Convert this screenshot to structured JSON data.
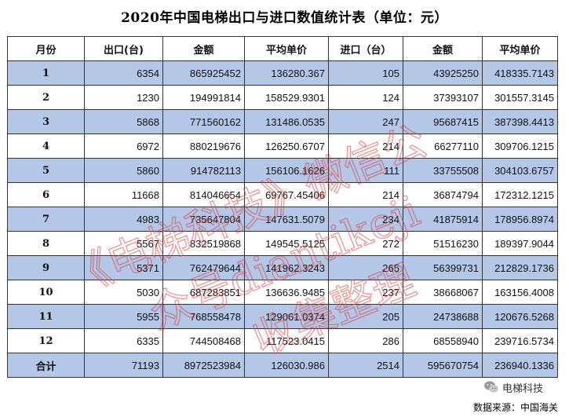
{
  "title": "2020年中国电梯出口与进口数值统计表（单位：元）",
  "headers": [
    "月份",
    "出口(台)",
    "金额",
    "平均单价",
    "进口（台）",
    "金额",
    "平均单价"
  ],
  "rows": [
    [
      "1",
      "6354",
      "865925452",
      "136280.367",
      "105",
      "43925250",
      "418335.7143"
    ],
    [
      "2",
      "1230",
      "194991814",
      "158529.9301",
      "124",
      "37393107",
      "301557.3145"
    ],
    [
      "3",
      "5868",
      "771560162",
      "131486.0535",
      "247",
      "95687415",
      "387398.4413"
    ],
    [
      "4",
      "6972",
      "880219676",
      "126250.6707",
      "214",
      "66277110",
      "309706.1215"
    ],
    [
      "5",
      "5860",
      "914782113",
      "156106.1626",
      "111",
      "33755508",
      "304103.6757"
    ],
    [
      "6",
      "11668",
      "814046654",
      "69767.45406",
      "214",
      "36874794",
      "172312.1215"
    ],
    [
      "7",
      "4983",
      "735647804",
      "147631.5079",
      "234",
      "41875914",
      "178956.8974"
    ],
    [
      "8",
      "5567",
      "832519868",
      "149545.5125",
      "272",
      "51516230",
      "189397.9044"
    ],
    [
      "9",
      "5371",
      "762479644",
      "141962.3243",
      "265",
      "56399731",
      "212829.1736"
    ],
    [
      "10",
      "5030",
      "687283851",
      "136636.9485",
      "237",
      "38668067",
      "163156.4008"
    ],
    [
      "11",
      "5955",
      "768558478",
      "129061.0374",
      "205",
      "24738688",
      "120676.5268"
    ],
    [
      "12",
      "6335",
      "744508468",
      "117523.0415",
      "286",
      "68558940",
      "239716.5734"
    ]
  ],
  "total": [
    "合计",
    "71193",
    "8972523984",
    "126030.986",
    "2514",
    "595670754",
    "236940.1336"
  ],
  "watermark": {
    "line1": "《电梯科技》微信公",
    "line2": "众号diantikeji",
    "line3": "收集整理",
    "color": "#d94040"
  },
  "brand": {
    "text": "电梯科技",
    "icon": "wechat-icon"
  },
  "source": "数据来源：中国海关",
  "colors": {
    "shaded_row": "#b4c7e7",
    "border": "#333333"
  }
}
